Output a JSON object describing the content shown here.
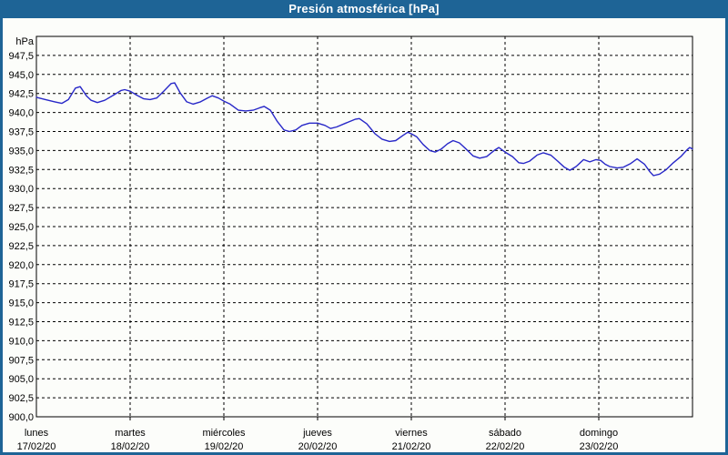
{
  "window": {
    "title": "Presión atmosférica [hPa]"
  },
  "colors": {
    "frame_blue": "#1e6496",
    "line_blue": "#2828c8",
    "grid_black": "#000000",
    "background": "#fcfdfa",
    "title_text": "#ffffff"
  },
  "chart_data": {
    "type": "line",
    "title": "Presión atmosférica [hPa]",
    "y_unit_label": "hPa",
    "ylabel": "hPa",
    "xlabel": "",
    "ylim": [
      900,
      950
    ],
    "ytick_min": 900.0,
    "ytick_max": 947.5,
    "ytick_step": 2.5,
    "decimal_separator": ",",
    "grid": "dashed",
    "legend": "none",
    "x_hours_total": 168,
    "x_days": [
      {
        "name": "lunes",
        "date": "17/02/20"
      },
      {
        "name": "martes",
        "date": "18/02/20"
      },
      {
        "name": "miércoles",
        "date": "19/02/20"
      },
      {
        "name": "jueves",
        "date": "20/02/20"
      },
      {
        "name": "viernes",
        "date": "21/02/20"
      },
      {
        "name": "sábado",
        "date": "22/02/20"
      },
      {
        "name": "domingo",
        "date": "23/02/20"
      }
    ],
    "series": [
      {
        "name": "Presión atmosférica",
        "color": "#2828c8",
        "points": [
          [
            0,
            942.0
          ],
          [
            2.3,
            941.7
          ],
          [
            4.7,
            941.4
          ],
          [
            6.5,
            941.2
          ],
          [
            8.2,
            941.7
          ],
          [
            10,
            943.2
          ],
          [
            11.2,
            943.4
          ],
          [
            12.8,
            942.2
          ],
          [
            14,
            941.6
          ],
          [
            15.6,
            941.3
          ],
          [
            17.5,
            941.6
          ],
          [
            19.8,
            942.3
          ],
          [
            21.7,
            942.9
          ],
          [
            22.6,
            943.0
          ],
          [
            24,
            942.8
          ],
          [
            25.6,
            942.3
          ],
          [
            27.5,
            941.8
          ],
          [
            29.1,
            941.7
          ],
          [
            30.8,
            941.9
          ],
          [
            32.6,
            942.8
          ],
          [
            34.5,
            943.8
          ],
          [
            35.4,
            943.9
          ],
          [
            36.8,
            942.6
          ],
          [
            38.5,
            941.4
          ],
          [
            40.1,
            941.1
          ],
          [
            42,
            941.4
          ],
          [
            43.8,
            941.9
          ],
          [
            45,
            942.2
          ],
          [
            46.6,
            941.9
          ],
          [
            48,
            941.5
          ],
          [
            49.6,
            941.1
          ],
          [
            51.7,
            940.3
          ],
          [
            53.6,
            940.2
          ],
          [
            55.5,
            940.3
          ],
          [
            57.1,
            940.6
          ],
          [
            58.3,
            940.8
          ],
          [
            59.9,
            940.3
          ],
          [
            61.7,
            938.8
          ],
          [
            63.4,
            937.7
          ],
          [
            64.8,
            937.5
          ],
          [
            66.4,
            937.7
          ],
          [
            68,
            938.3
          ],
          [
            69.9,
            938.6
          ],
          [
            72,
            938.6
          ],
          [
            73.9,
            938.3
          ],
          [
            75.3,
            937.9
          ],
          [
            76.9,
            938.1
          ],
          [
            79.2,
            938.6
          ],
          [
            81.6,
            939.1
          ],
          [
            82.7,
            939.2
          ],
          [
            84.6,
            938.5
          ],
          [
            86.7,
            937.2
          ],
          [
            88.5,
            936.5
          ],
          [
            90.4,
            936.2
          ],
          [
            92,
            936.3
          ],
          [
            93.9,
            937.0
          ],
          [
            95.1,
            937.4
          ],
          [
            96,
            937.2
          ],
          [
            97.4,
            936.8
          ],
          [
            99,
            935.8
          ],
          [
            100.7,
            935.0
          ],
          [
            102.1,
            934.8
          ],
          [
            103.7,
            935.2
          ],
          [
            105.3,
            935.9
          ],
          [
            106.7,
            936.3
          ],
          [
            108.3,
            936.0
          ],
          [
            110,
            935.2
          ],
          [
            111.8,
            934.3
          ],
          [
            113.5,
            934.0
          ],
          [
            115.3,
            934.2
          ],
          [
            117.2,
            935.0
          ],
          [
            118.4,
            935.4
          ],
          [
            120,
            934.8
          ],
          [
            121.9,
            934.2
          ],
          [
            123.5,
            933.4
          ],
          [
            124.7,
            933.3
          ],
          [
            126.3,
            933.6
          ],
          [
            128.2,
            934.4
          ],
          [
            129.8,
            934.7
          ],
          [
            131.7,
            934.4
          ],
          [
            133.5,
            933.6
          ],
          [
            135.2,
            932.8
          ],
          [
            136.6,
            932.4
          ],
          [
            138.2,
            932.9
          ],
          [
            140.1,
            933.8
          ],
          [
            141.7,
            933.5
          ],
          [
            143.3,
            933.8
          ],
          [
            144.5,
            933.7
          ],
          [
            145.6,
            933.2
          ],
          [
            146.8,
            932.9
          ],
          [
            148.7,
            932.7
          ],
          [
            150.3,
            932.8
          ],
          [
            152.2,
            933.3
          ],
          [
            153.8,
            933.9
          ],
          [
            155.7,
            933.2
          ],
          [
            157.1,
            932.2
          ],
          [
            158,
            931.7
          ],
          [
            159.6,
            931.9
          ],
          [
            161.3,
            932.5
          ],
          [
            163.1,
            933.4
          ],
          [
            165,
            934.2
          ],
          [
            166.6,
            935.1
          ],
          [
            167.3,
            935.4
          ],
          [
            168,
            935.2
          ]
        ]
      }
    ]
  }
}
